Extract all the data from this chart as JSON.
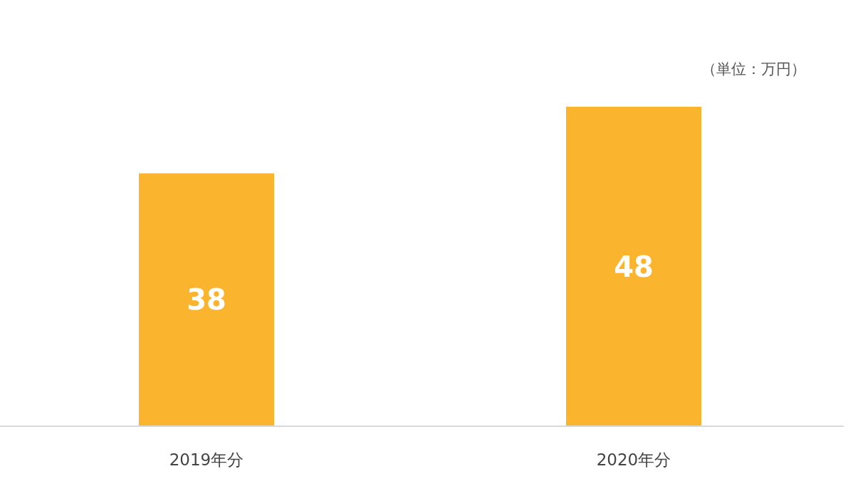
{
  "chart_data": {
    "type": "bar",
    "categories": [
      "2019年分",
      "2020年分"
    ],
    "values": [
      38,
      48
    ],
    "color": "#fbb42e",
    "data_labels": true,
    "annotations": [
      "（単位：万円）"
    ]
  }
}
